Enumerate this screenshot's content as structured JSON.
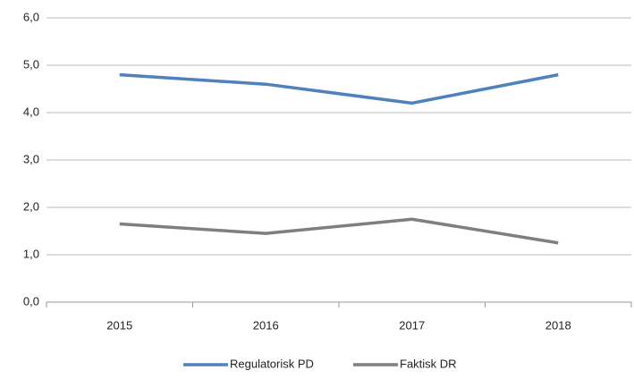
{
  "chart_data": {
    "type": "line",
    "categories": [
      "2015",
      "2016",
      "2017",
      "2018"
    ],
    "series": [
      {
        "name": "Regulatorisk PD",
        "color": "#4f81bd",
        "values": [
          4.8,
          4.6,
          4.2,
          4.8
        ]
      },
      {
        "name": "Faktisk DR",
        "color": "#7f7f7f",
        "values": [
          1.65,
          1.45,
          1.75,
          1.25
        ]
      }
    ],
    "ylim": [
      0,
      6
    ],
    "yticks": [
      {
        "value": 0,
        "label": "0,0"
      },
      {
        "value": 1,
        "label": "1,0"
      },
      {
        "value": 2,
        "label": "2,0"
      },
      {
        "value": 3,
        "label": "3,0"
      },
      {
        "value": 4,
        "label": "4,0"
      },
      {
        "value": 5,
        "label": "5,0"
      },
      {
        "value": 6,
        "label": "6,0"
      }
    ],
    "grid": true,
    "legend": "bottom"
  }
}
